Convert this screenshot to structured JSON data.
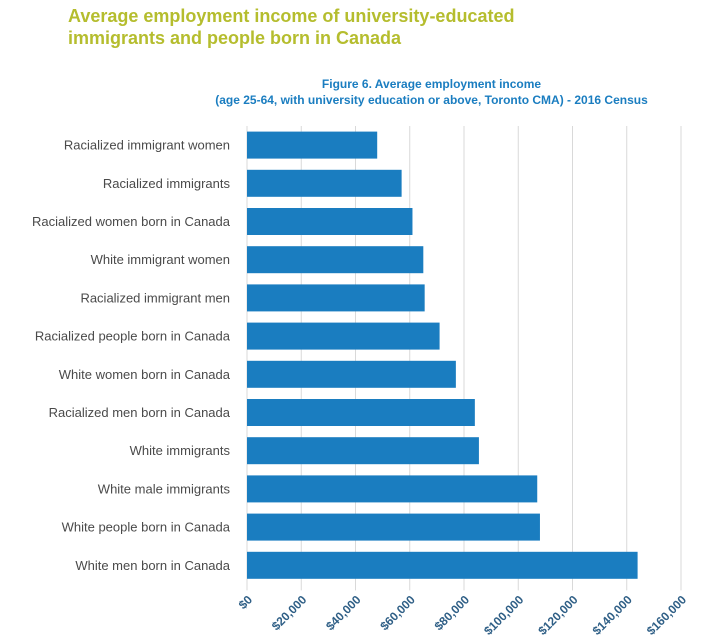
{
  "header": {
    "title_line1": "Average employment income of university-educated",
    "title_line2": "immigrants and people born in Canada"
  },
  "colors": {
    "heading": "#b5bd2e",
    "figure_title": "#1a7dc0",
    "bar": "#1a7dc0",
    "grid": "#d9d9d9"
  },
  "chart_data": {
    "type": "bar",
    "orientation": "horizontal",
    "title": "Figure 6. Average employment income",
    "subtitle": "(age 25-64, with university education or above, Toronto CMA) - 2016 Census",
    "xlabel": "",
    "ylabel": "",
    "categories": [
      "Racialized immigrant women",
      "Racialized immigrants",
      "Racialized women born in Canada",
      "White immigrant women",
      "Racialized immigrant men",
      "Racialized people born in Canada",
      "White women born in Canada",
      "Racialized men born in Canada",
      "White immigrants",
      "White male immigrants",
      "White people born in Canada",
      "White men born in Canada"
    ],
    "values": [
      48000,
      57000,
      61000,
      65000,
      65500,
      71000,
      77000,
      84000,
      85500,
      107000,
      108000,
      144000
    ],
    "xlim": [
      0,
      160000
    ],
    "ticks": [
      0,
      20000,
      40000,
      60000,
      80000,
      100000,
      120000,
      140000,
      160000
    ],
    "tick_labels": [
      "$0",
      "$20,000",
      "$40,000",
      "$60,000",
      "$80,000",
      "$100,000",
      "$120,000",
      "$140,000",
      "$160,000"
    ],
    "grid": true,
    "legend": "none"
  }
}
